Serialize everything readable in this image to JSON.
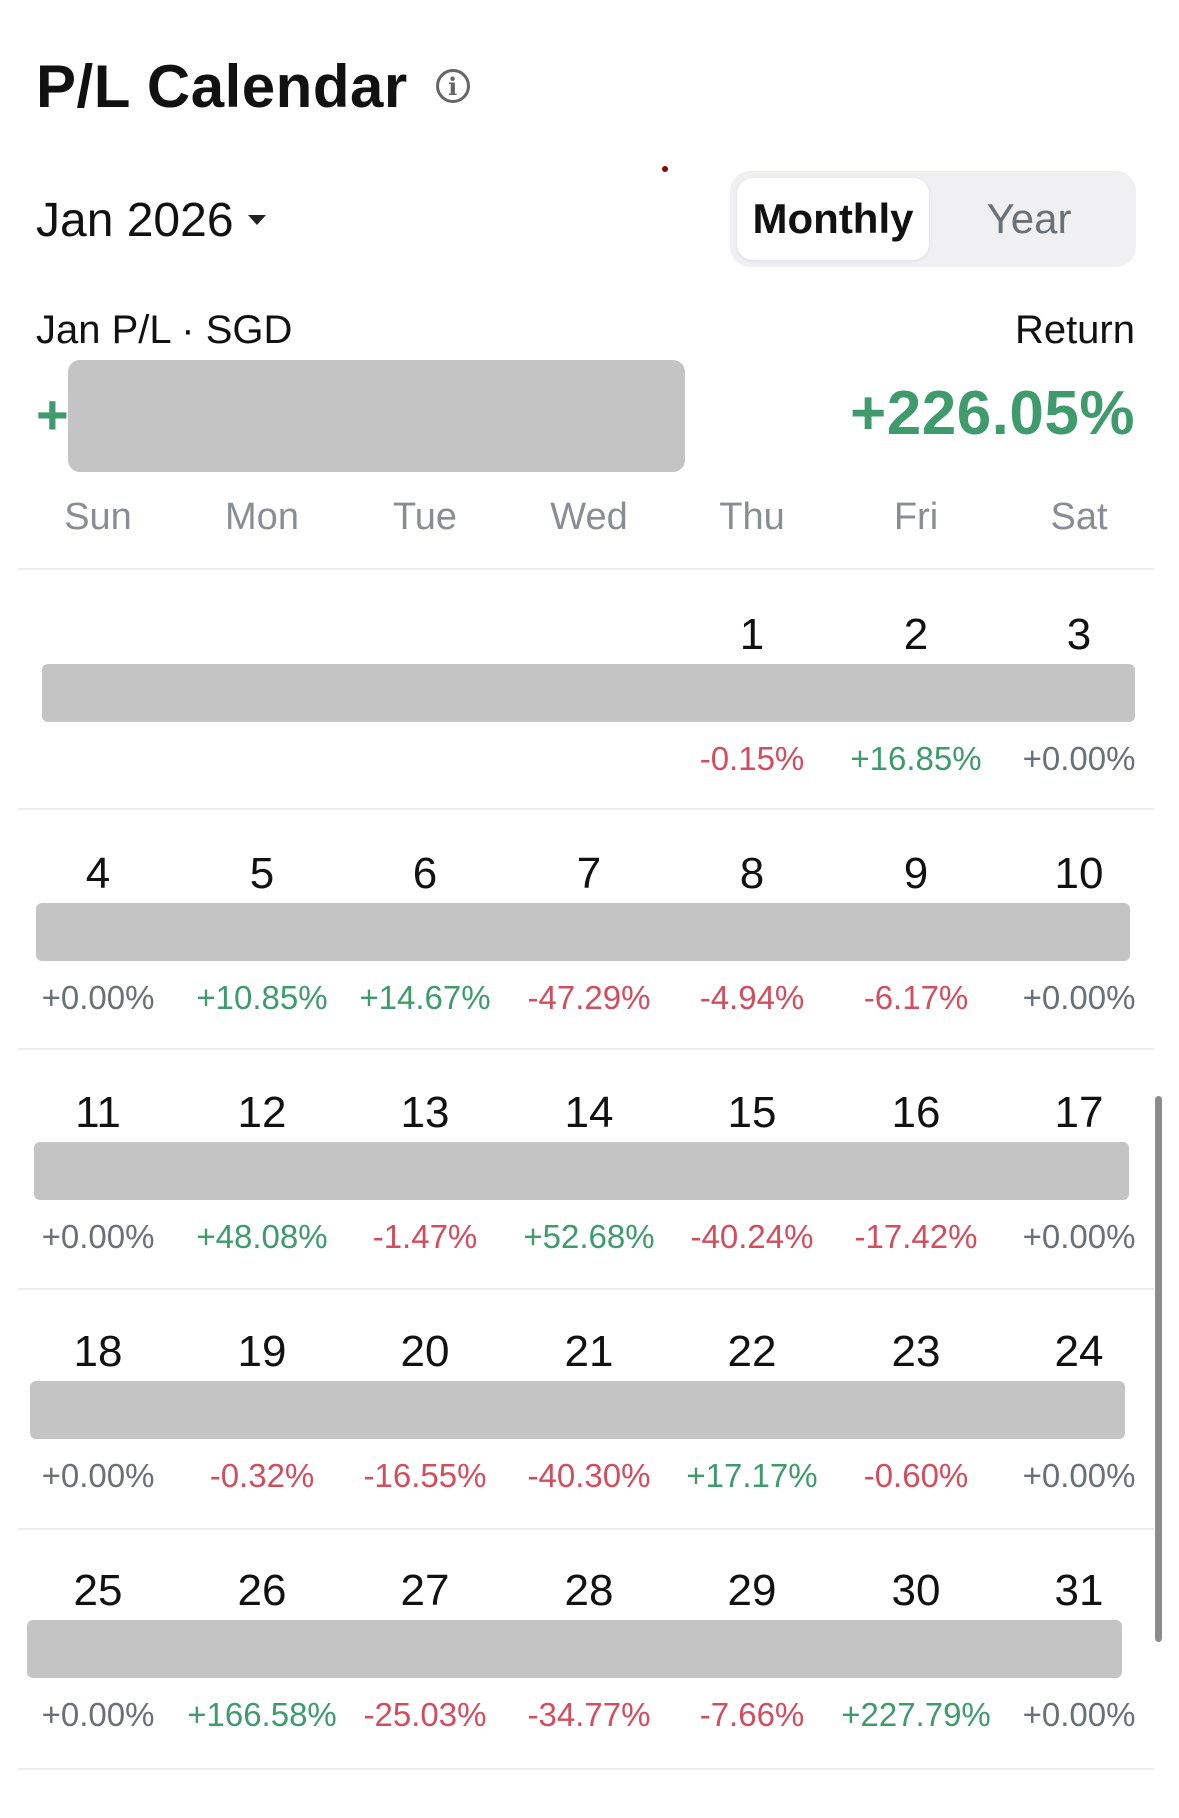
{
  "header": {
    "title": "P/L Calendar",
    "info_icon": "info-icon"
  },
  "month_picker": {
    "label": "Jan 2026",
    "icon": "caret-down-icon"
  },
  "segment": {
    "monthly": "Monthly",
    "year": "Year",
    "selected": "Monthly"
  },
  "summary": {
    "pl_label": "Jan P/L · SGD",
    "pl_sign": "+",
    "return_label": "Return",
    "return_value": "+226.05%"
  },
  "colors": {
    "positive": "#3f9b6c",
    "negative": "#d24e5e",
    "neutral": "#6b6f76",
    "redaction": "#c4c4c4"
  },
  "weekdays": [
    "Sun",
    "Mon",
    "Tue",
    "Wed",
    "Thu",
    "Fri",
    "Sat"
  ],
  "weeks": [
    {
      "days": [
        null,
        null,
        null,
        null,
        {
          "day": "1",
          "pct": "-0.15%",
          "trend": "negative"
        },
        {
          "day": "2",
          "pct": "+16.85%",
          "trend": "positive"
        },
        {
          "day": "3",
          "pct": "+0.00%",
          "trend": "neutral"
        }
      ]
    },
    {
      "days": [
        {
          "day": "4",
          "pct": "+0.00%",
          "trend": "neutral"
        },
        {
          "day": "5",
          "pct": "+10.85%",
          "trend": "positive"
        },
        {
          "day": "6",
          "pct": "+14.67%",
          "trend": "positive"
        },
        {
          "day": "7",
          "pct": "-47.29%",
          "trend": "negative"
        },
        {
          "day": "8",
          "pct": "-4.94%",
          "trend": "negative"
        },
        {
          "day": "9",
          "pct": "-6.17%",
          "trend": "negative"
        },
        {
          "day": "10",
          "pct": "+0.00%",
          "trend": "neutral"
        }
      ]
    },
    {
      "days": [
        {
          "day": "11",
          "pct": "+0.00%",
          "trend": "neutral"
        },
        {
          "day": "12",
          "pct": "+48.08%",
          "trend": "positive"
        },
        {
          "day": "13",
          "pct": "-1.47%",
          "trend": "negative"
        },
        {
          "day": "14",
          "pct": "+52.68%",
          "trend": "positive"
        },
        {
          "day": "15",
          "pct": "-40.24%",
          "trend": "negative"
        },
        {
          "day": "16",
          "pct": "-17.42%",
          "trend": "negative"
        },
        {
          "day": "17",
          "pct": "+0.00%",
          "trend": "neutral"
        }
      ]
    },
    {
      "days": [
        {
          "day": "18",
          "pct": "+0.00%",
          "trend": "neutral"
        },
        {
          "day": "19",
          "pct": "-0.32%",
          "trend": "negative"
        },
        {
          "day": "20",
          "pct": "-16.55%",
          "trend": "negative"
        },
        {
          "day": "21",
          "pct": "-40.30%",
          "trend": "negative"
        },
        {
          "day": "22",
          "pct": "+17.17%",
          "trend": "positive"
        },
        {
          "day": "23",
          "pct": "-0.60%",
          "trend": "negative"
        },
        {
          "day": "24",
          "pct": "+0.00%",
          "trend": "neutral"
        }
      ]
    },
    {
      "days": [
        {
          "day": "25",
          "pct": "+0.00%",
          "trend": "neutral"
        },
        {
          "day": "26",
          "pct": "+166.58%",
          "trend": "positive"
        },
        {
          "day": "27",
          "pct": "-25.03%",
          "trend": "negative"
        },
        {
          "day": "28",
          "pct": "-34.77%",
          "trend": "negative"
        },
        {
          "day": "29",
          "pct": "-7.66%",
          "trend": "negative"
        },
        {
          "day": "30",
          "pct": "+227.79%",
          "trend": "positive"
        },
        {
          "day": "31",
          "pct": "+0.00%",
          "trend": "neutral"
        }
      ]
    }
  ]
}
